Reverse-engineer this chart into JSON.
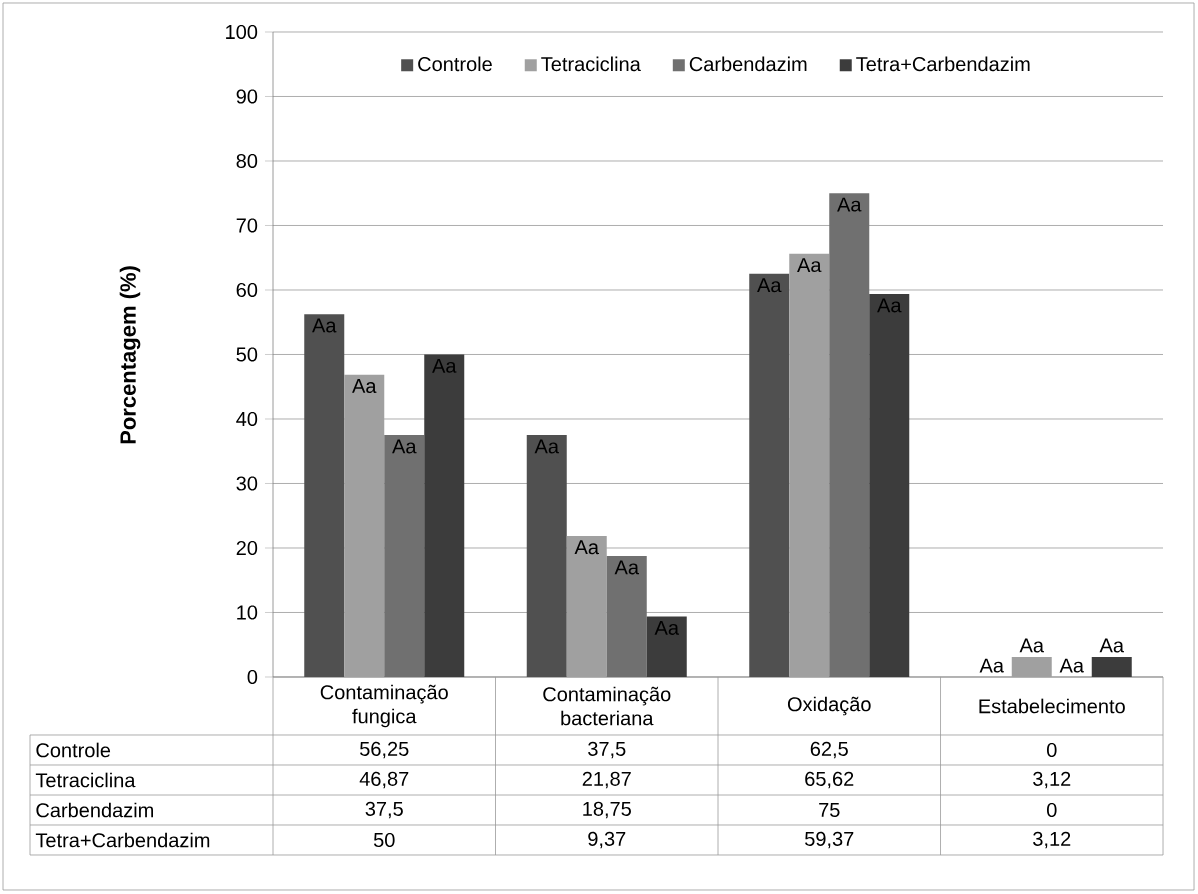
{
  "chart_data": {
    "type": "bar",
    "ylabel": "Porcentagem (%)",
    "categories": [
      "Contaminação fungica",
      "Contaminação bacteriana",
      "Oxidação",
      "Estabelecimento"
    ],
    "series": [
      {
        "name": "Controle",
        "color": "#505050",
        "values": [
          56.25,
          37.5,
          62.5,
          0
        ],
        "value_labels": [
          "56,25",
          "37,5",
          "62,5",
          "0"
        ]
      },
      {
        "name": "Tetraciclina",
        "color": "#a0a0a0",
        "values": [
          46.87,
          21.87,
          65.62,
          3.12
        ],
        "value_labels": [
          "46,87",
          "21,87",
          "65,62",
          "3,12"
        ]
      },
      {
        "name": "Carbendazim",
        "color": "#707070",
        "values": [
          37.5,
          18.75,
          75,
          0
        ],
        "value_labels": [
          "37,5",
          "18,75",
          "75",
          "0"
        ]
      },
      {
        "name": "Tetra+Carbendazim",
        "color": "#3c3c3c",
        "values": [
          50,
          9.37,
          59.37,
          3.12
        ],
        "value_labels": [
          "50",
          "9,37",
          "59,37",
          "3,12"
        ]
      }
    ],
    "annotations": [
      "Aa",
      "Aa",
      "Aa",
      "Aa",
      "Aa",
      "Aa",
      "Aa",
      "Aa",
      "Aa",
      "Aa",
      "Aa",
      "Aa",
      "Aa",
      "Aa",
      "Aa",
      "Aa"
    ],
    "ylim": [
      0,
      100
    ],
    "yticks": [
      0,
      10,
      20,
      30,
      40,
      50,
      60,
      70,
      80,
      90,
      100
    ],
    "grid": "y",
    "legend": "top"
  }
}
